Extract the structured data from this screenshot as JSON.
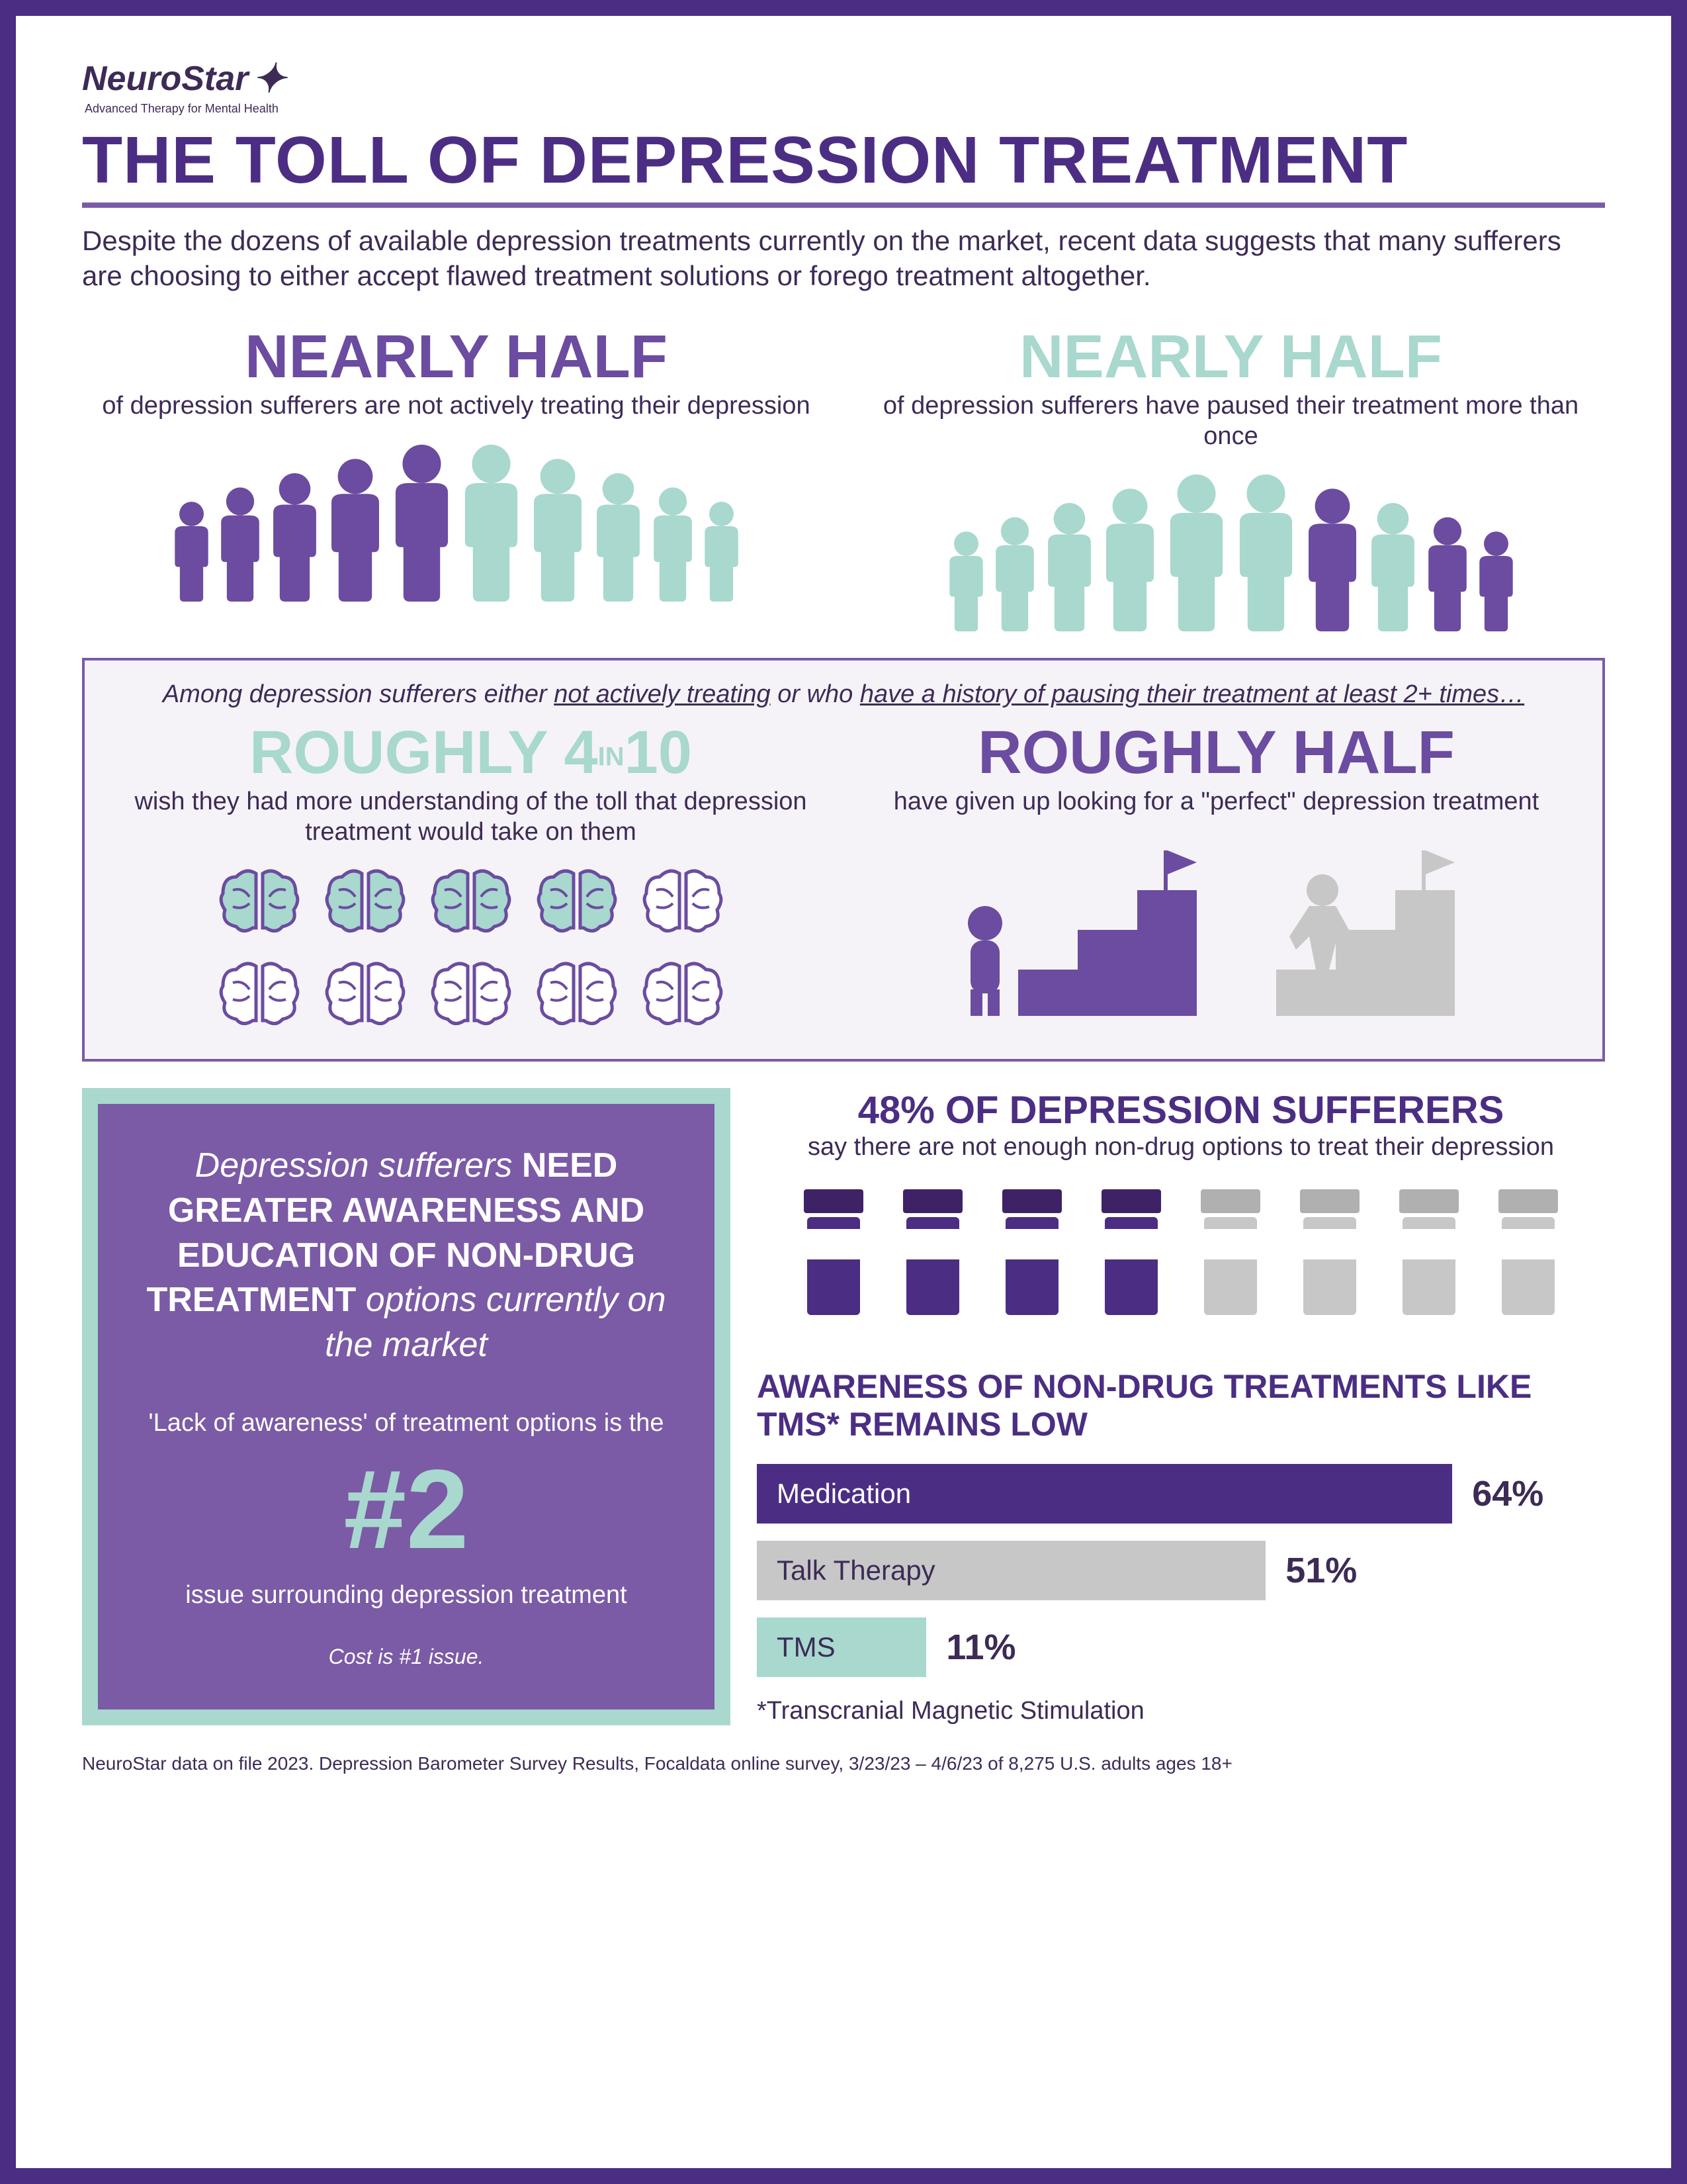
{
  "logo": {
    "name": "NeuroStar",
    "tagline": "Advanced Therapy for Mental Health"
  },
  "title": "THE TOLL OF DEPRESSION TREATMENT",
  "intro": "Despite the dozens of available depression treatments currently on the market, recent data suggests that many sufferers are choosing to either accept flawed treatment solutions or forego treatment altogether.",
  "top_stats": {
    "left": {
      "headline": "NEARLY HALF",
      "sub": "of depression sufferers are not actively treating their depression",
      "color": "#6b4ca0",
      "people_colors": [
        "#6b4ca0",
        "#6b4ca0",
        "#6b4ca0",
        "#6b4ca0",
        "#6b4ca0",
        "#a8d8ce",
        "#a8d8ce",
        "#a8d8ce",
        "#a8d8ce",
        "#a8d8ce"
      ]
    },
    "right": {
      "headline": "NEARLY HALF",
      "sub": "of depression sufferers have paused their treatment more than once",
      "color": "#a8d8ce",
      "people_colors": [
        "#a8d8ce",
        "#a8d8ce",
        "#a8d8ce",
        "#a8d8ce",
        "#a8d8ce",
        "#a8d8ce",
        "#6b4ca0",
        "#a8d8ce",
        "#6b4ca0",
        "#6b4ca0"
      ]
    }
  },
  "callout": {
    "heading_pre": "Among depression sufferers either ",
    "heading_u1": "not actively treating",
    "heading_mid": " or who ",
    "heading_u2": "have a history of pausing their treatment at least 2+ times…",
    "left": {
      "headline_pre": "ROUGHLY 4",
      "headline_in": "IN",
      "headline_post": "10",
      "sub": "wish they had more understanding of the toll that depression treatment would take on them",
      "brain_colors_row1": [
        "#a8d8ce",
        "#a8d8ce",
        "#a8d8ce",
        "#a8d8ce",
        "#ffffff"
      ],
      "brain_colors_row2": [
        "#ffffff",
        "#ffffff",
        "#ffffff",
        "#ffffff",
        "#ffffff"
      ]
    },
    "right": {
      "headline": "ROUGHLY HALF",
      "sub": "have given up looking for a \"perfect\" depression treatment"
    }
  },
  "awareness_box": {
    "line1_pre": "Depression sufferers ",
    "line1_bold": "NEED GREATER AWARENESS AND EDUCATION OF NON-DRUG TREATMENT",
    "line1_post": " options currently on the market",
    "line2": "'Lack of awareness' of treatment options is the",
    "num": "#2",
    "line3": "issue surrounding depression treatment",
    "footer": "Cost is #1 issue."
  },
  "stat48": {
    "headline": "48% OF DEPRESSION SUFFERERS",
    "sub": "say there are not enough non-drug options to treat their depression",
    "bottle_colors": [
      "#4b2e83",
      "#4b2e83",
      "#4b2e83",
      "#4b2e83",
      "#c7c7c7",
      "#c7c7c7",
      "#c7c7c7",
      "#c7c7c7"
    ]
  },
  "bar_chart": {
    "title": "AWARENESS OF NON-DRUG TREATMENTS LIKE TMS* REMAINS LOW",
    "bars": [
      {
        "label": "Medication",
        "pct": 64,
        "color": "#4b2e83",
        "text_color": "#ffffff",
        "width_pct": 82
      },
      {
        "label": "Talk Therapy",
        "pct": 51,
        "color": "#c7c7c7",
        "text_color": "#3d2b56",
        "width_pct": 60
      },
      {
        "label": "TMS",
        "pct": 11,
        "color": "#a8d8ce",
        "text_color": "#3d2b56",
        "width_pct": 20
      }
    ],
    "note": "*Transcranial Magnetic Stimulation"
  },
  "footnote": "NeuroStar data on file 2023. Depression Barometer Survey Results, Focaldata online survey, 3/23/23 – 4/6/23 of 8,275 U.S. adults ages 18+"
}
